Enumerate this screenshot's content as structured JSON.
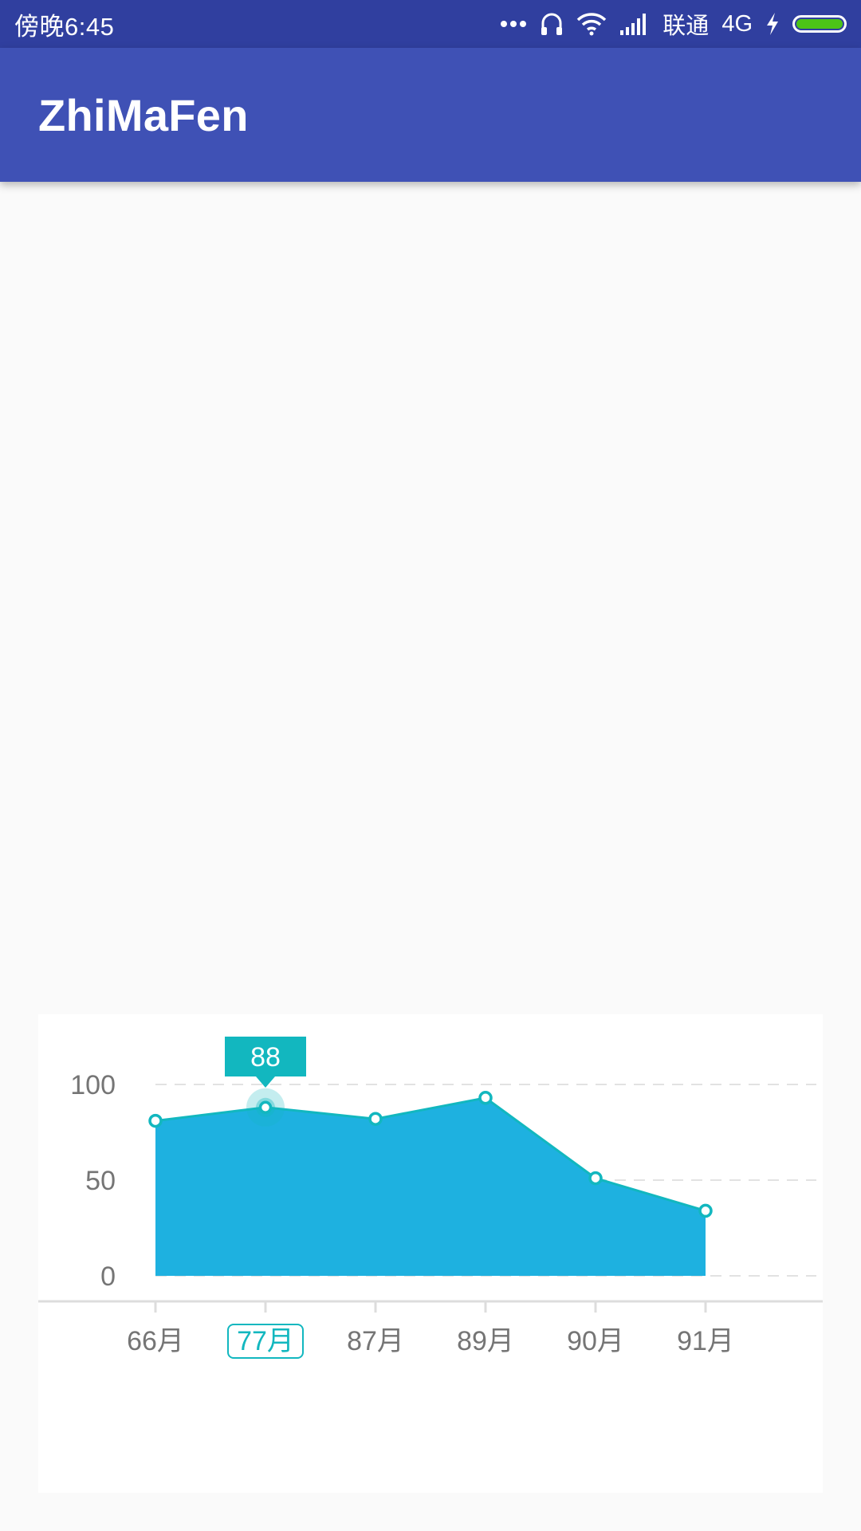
{
  "status_bar": {
    "time": "傍晚6:45",
    "carrier": "联通",
    "network": "4G",
    "icons": [
      "more-dots-icon",
      "headset-icon",
      "wifi-icon",
      "signal-icon",
      "charging-bolt-icon",
      "battery-icon"
    ],
    "battery_color": "#4cc417"
  },
  "app_bar": {
    "title": "ZhiMaFen",
    "color": "#3f51b5"
  },
  "chart_data": {
    "type": "area",
    "categories": [
      "66月",
      "77月",
      "87月",
      "89月",
      "90月",
      "91月"
    ],
    "values": [
      81,
      88,
      82,
      93,
      51,
      34
    ],
    "yticks": [
      "100",
      "50",
      "0"
    ],
    "ylim": [
      0,
      100
    ],
    "selected_index": 1,
    "selected_label": "88",
    "fill_color": "#1eb1e0",
    "line_color": "#12b7bf",
    "grid": "dashed-horizontal"
  }
}
